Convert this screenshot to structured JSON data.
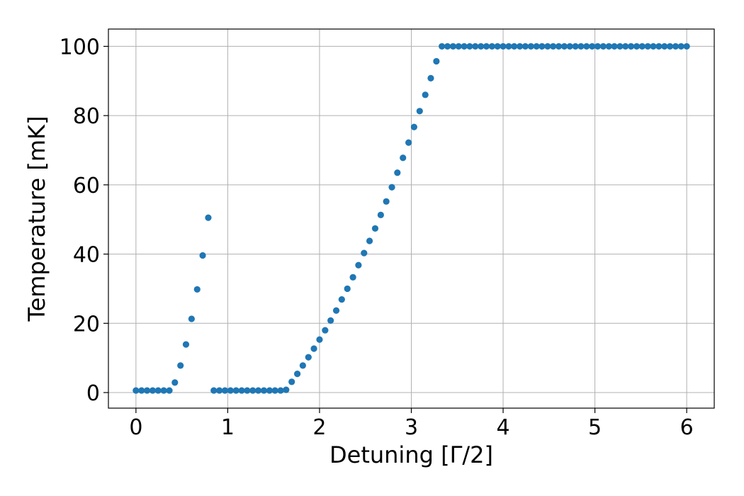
{
  "chart_data": {
    "type": "scatter",
    "xlabel": "Detuning [Γ/2]",
    "ylabel": "Temperature [mK]",
    "xlim": [
      -0.3,
      6.3
    ],
    "ylim": [
      -4.5,
      105
    ],
    "grid": true,
    "marker_color": "#1f77b4",
    "xticks": [
      0,
      1,
      2,
      3,
      4,
      5,
      6
    ],
    "yticks": [
      0,
      20,
      40,
      60,
      80,
      100
    ],
    "xtick_labels": [
      "0",
      "1",
      "2",
      "3",
      "4",
      "5",
      "6"
    ],
    "ytick_labels": [
      "0",
      "20",
      "40",
      "60",
      "80",
      "100"
    ],
    "series": [
      {
        "x": [
          0.0,
          0.061,
          0.121,
          0.182,
          0.242,
          0.303,
          0.364,
          0.424,
          0.485,
          0.545,
          0.606,
          0.667,
          0.727,
          0.788,
          0.848,
          0.909,
          0.97,
          1.03,
          1.091,
          1.152,
          1.212,
          1.273,
          1.333,
          1.394,
          1.455,
          1.515,
          1.576,
          1.636,
          1.697,
          1.758,
          1.818,
          1.879,
          1.939,
          2.0,
          2.061,
          2.121,
          2.182,
          2.242,
          2.303,
          2.364,
          2.424,
          2.485,
          2.545,
          2.606,
          2.667,
          2.727,
          2.788,
          2.848,
          2.909,
          2.97,
          3.03,
          3.091,
          3.152,
          3.212,
          3.273,
          3.333,
          3.394,
          3.455,
          3.515,
          3.576,
          3.636,
          3.697,
          3.758,
          3.818,
          3.879,
          3.939,
          4.0,
          4.061,
          4.121,
          4.182,
          4.242,
          4.303,
          4.364,
          4.424,
          4.485,
          4.545,
          4.606,
          4.667,
          4.727,
          4.788,
          4.848,
          4.909,
          4.97,
          5.03,
          5.091,
          5.152,
          5.212,
          5.273,
          5.333,
          5.394,
          5.455,
          5.515,
          5.576,
          5.636,
          5.697,
          5.758,
          5.818,
          5.879,
          5.939,
          6.0
        ],
        "y": [
          0.6,
          0.6,
          0.6,
          0.6,
          0.6,
          0.6,
          0.6,
          2.9,
          7.8,
          13.9,
          21.3,
          29.8,
          39.6,
          50.5,
          0.6,
          0.6,
          0.6,
          0.6,
          0.6,
          0.6,
          0.6,
          0.6,
          0.6,
          0.6,
          0.6,
          0.6,
          0.6,
          0.8,
          3.1,
          5.4,
          7.8,
          10.2,
          12.7,
          15.3,
          18.0,
          20.8,
          23.7,
          26.9,
          30.0,
          33.3,
          36.8,
          40.3,
          43.8,
          47.4,
          51.3,
          55.2,
          59.3,
          63.5,
          67.8,
          72.2,
          76.7,
          81.3,
          86.0,
          90.8,
          95.7,
          100,
          100,
          100,
          100,
          100,
          100,
          100,
          100,
          100,
          100,
          100,
          100,
          100,
          100,
          100,
          100,
          100,
          100,
          100,
          100,
          100,
          100,
          100,
          100,
          100,
          100,
          100,
          100,
          100,
          100,
          100,
          100,
          100,
          100,
          100,
          100,
          100,
          100,
          100,
          100,
          100,
          100,
          100,
          100,
          100
        ]
      }
    ]
  }
}
